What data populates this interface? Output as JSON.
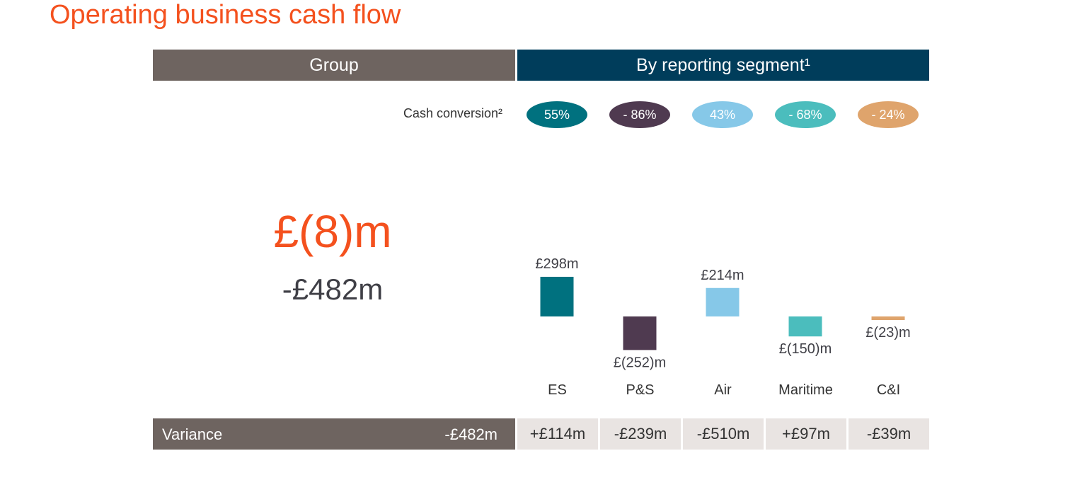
{
  "title": "Operating business cash flow",
  "headers": {
    "group": "Group",
    "segment": "By reporting segment¹"
  },
  "cash_conversion_label": "Cash conversion²",
  "group": {
    "value": "£(8)m",
    "variance": "-£482m"
  },
  "variance_row": {
    "label": "Variance",
    "total": "-£482m"
  },
  "colors": {
    "title": "#f4511e",
    "group_header": "#6e6460",
    "segment_header": "#003d5b"
  },
  "chart_data": {
    "type": "bar",
    "title": "Operating business cash flow by reporting segment",
    "categories": [
      "ES",
      "P&S",
      "Air",
      "Maritime",
      "C&I"
    ],
    "values": [
      298,
      -252,
      214,
      -150,
      -23
    ],
    "value_labels": [
      "£298m",
      "£(252)m",
      "£214m",
      "£(150)m",
      "£(23)m"
    ],
    "unit": "£m",
    "cash_conversion": [
      "55%",
      "- 86%",
      "43%",
      "- 68%",
      "- 24%"
    ],
    "variance": [
      "+£114m",
      "-£239m",
      "-£510m",
      "+£97m",
      "-£39m"
    ],
    "colors": [
      "#00717f",
      "#4f3a50",
      "#86c8e8",
      "#4bbdbd",
      "#dfa46c"
    ],
    "grid": false,
    "legend": "none"
  }
}
